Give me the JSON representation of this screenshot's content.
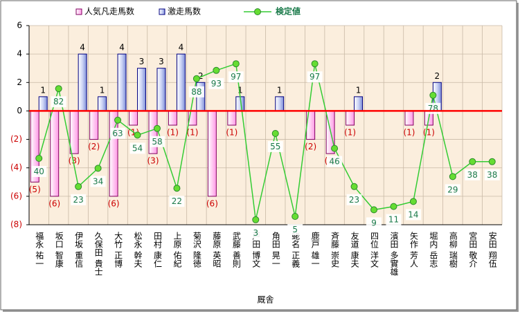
{
  "chart_data": {
    "type": "bar",
    "x_label": "厩舎",
    "categories": [
      "福永 祐一",
      "坂口 智康",
      "伊坂 重信",
      "久保田 貴士",
      "大竹 正博",
      "松永 幹夫",
      "田村 康仁",
      "上原 佑紀",
      "菊沢 隆徳",
      "藤原 英昭",
      "武藤 善則",
      "戸田 博文",
      "角田 晃一",
      "蛯名 正義",
      "鹿戸 雄一",
      "斉藤 崇史",
      "友道 康夫",
      "四位 洋文",
      "濱田 多實雄",
      "矢作 芳人",
      "堀内 岳志",
      "高柳 瑞樹",
      "宮田 敬介",
      "安田 翔伍"
    ],
    "series": [
      {
        "name": "人気凡走馬数",
        "color": "#ff99e6",
        "values": [
          -5,
          -6,
          -3,
          -2,
          -6,
          -1,
          -3,
          -1,
          -1,
          -6,
          -1,
          0,
          0,
          0,
          -2,
          -3,
          -1,
          0,
          0,
          -1,
          -1,
          0,
          0,
          0
        ],
        "value_labels": [
          "(5)",
          "(6)",
          "(3)",
          "(2)",
          "(6)",
          "(1)",
          "(3)",
          "(1)",
          "(1)",
          "(6)",
          "(1)",
          null,
          null,
          null,
          "(2)",
          "(3)",
          "(1)",
          null,
          null,
          "(1)",
          "(1)",
          null,
          null,
          null
        ]
      },
      {
        "name": "激走馬数",
        "color": "#7f8fd9",
        "values": [
          1,
          0,
          4,
          1,
          4,
          3,
          3,
          4,
          2,
          0,
          1,
          0,
          1,
          0,
          0,
          0,
          1,
          0,
          0,
          0,
          2,
          0,
          0,
          0
        ],
        "value_labels": [
          "1",
          null,
          "4",
          "1",
          "4",
          "3",
          "3",
          "4",
          "2",
          null,
          "1",
          null,
          "1",
          null,
          null,
          null,
          "1",
          null,
          null,
          null,
          "2",
          null,
          null,
          null
        ]
      },
      {
        "name": "検定値",
        "type": "line",
        "axis": "y2",
        "color": "#33cc33",
        "values": [
          40,
          82,
          23,
          34,
          63,
          54,
          58,
          22,
          88,
          93,
          97,
          3,
          55,
          5,
          97,
          46,
          23,
          9,
          11,
          14,
          78,
          29,
          38,
          38
        ]
      }
    ],
    "ylim": [
      -8,
      6
    ],
    "yticks": [
      {
        "value": -8,
        "label": "(8)"
      },
      {
        "value": -6,
        "label": "(6)"
      },
      {
        "value": -4,
        "label": "(4)"
      },
      {
        "value": -2,
        "label": "(2)"
      },
      0,
      2,
      4,
      6
    ],
    "y2lim": [
      0,
      120
    ],
    "grid": true
  }
}
